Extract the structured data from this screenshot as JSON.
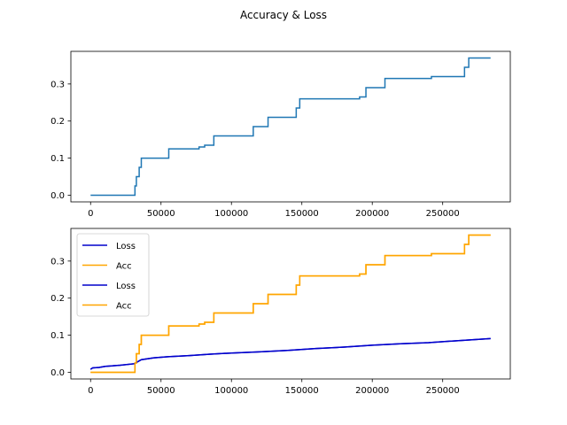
{
  "figure": {
    "title": "Accuracy & Loss"
  },
  "chart_data": [
    {
      "type": "line",
      "title": "",
      "xlabel": "",
      "ylabel": "",
      "xlim": [
        -14000,
        298000
      ],
      "ylim": [
        -0.018,
        0.388
      ],
      "xticks": [
        0,
        50000,
        100000,
        150000,
        200000,
        250000
      ],
      "xtick_labels": [
        "0",
        "50000",
        "100000",
        "150000",
        "200000",
        "250000"
      ],
      "yticks": [
        0.0,
        0.1,
        0.2,
        0.3
      ],
      "ytick_labels": [
        "0.0",
        "0.1",
        "0.2",
        "0.3"
      ],
      "grid": false,
      "legend": null,
      "series": [
        {
          "color": "#1f77b4",
          "step": true,
          "points": [
            [
              0,
              0.0
            ],
            [
              31500,
              0.0
            ],
            [
              31500,
              0.025
            ],
            [
              32500,
              0.025
            ],
            [
              32500,
              0.05
            ],
            [
              34500,
              0.05
            ],
            [
              34500,
              0.075
            ],
            [
              36000,
              0.075
            ],
            [
              36000,
              0.1
            ],
            [
              55500,
              0.1
            ],
            [
              55500,
              0.125
            ],
            [
              77000,
              0.125
            ],
            [
              77000,
              0.13
            ],
            [
              81000,
              0.13
            ],
            [
              81000,
              0.135
            ],
            [
              87500,
              0.135
            ],
            [
              87500,
              0.16
            ],
            [
              115500,
              0.16
            ],
            [
              115500,
              0.185
            ],
            [
              126000,
              0.185
            ],
            [
              126000,
              0.21
            ],
            [
              146000,
              0.21
            ],
            [
              146000,
              0.235
            ],
            [
              148500,
              0.235
            ],
            [
              148500,
              0.26
            ],
            [
              191000,
              0.26
            ],
            [
              191000,
              0.265
            ],
            [
              195500,
              0.265
            ],
            [
              195500,
              0.29
            ],
            [
              209000,
              0.29
            ],
            [
              209000,
              0.315
            ],
            [
              242000,
              0.315
            ],
            [
              242000,
              0.32
            ],
            [
              265500,
              0.32
            ],
            [
              265500,
              0.345
            ],
            [
              268500,
              0.345
            ],
            [
              268500,
              0.37
            ],
            [
              284000,
              0.37
            ]
          ]
        }
      ]
    },
    {
      "type": "line",
      "title": "",
      "xlabel": "",
      "ylabel": "",
      "xlim": [
        -14000,
        298000
      ],
      "ylim": [
        -0.018,
        0.388
      ],
      "xticks": [
        0,
        50000,
        100000,
        150000,
        200000,
        250000
      ],
      "xtick_labels": [
        "0",
        "50000",
        "100000",
        "150000",
        "200000",
        "250000"
      ],
      "yticks": [
        0.0,
        0.1,
        0.2,
        0.3
      ],
      "ytick_labels": [
        "0.0",
        "0.1",
        "0.2",
        "0.3"
      ],
      "grid": false,
      "legend": "top-left",
      "series": [
        {
          "name": "Loss",
          "color": "#0000cc",
          "step": false,
          "points": [
            [
              0,
              0.008
            ],
            [
              1500,
              0.012
            ],
            [
              6000,
              0.013
            ],
            [
              10500,
              0.016
            ],
            [
              21000,
              0.019
            ],
            [
              31000,
              0.023
            ],
            [
              36000,
              0.034
            ],
            [
              45000,
              0.039
            ],
            [
              55000,
              0.042
            ],
            [
              70000,
              0.045
            ],
            [
              85000,
              0.049
            ],
            [
              100000,
              0.052
            ],
            [
              120000,
              0.055
            ],
            [
              140000,
              0.059
            ],
            [
              160000,
              0.064
            ],
            [
              180000,
              0.068
            ],
            [
              200000,
              0.073
            ],
            [
              220000,
              0.077
            ],
            [
              240000,
              0.08
            ],
            [
              260000,
              0.085
            ],
            [
              284000,
              0.091
            ]
          ]
        },
        {
          "name": "Acc",
          "color": "#ffa500",
          "step": true,
          "points": [
            [
              0,
              0.0
            ],
            [
              31500,
              0.0
            ],
            [
              31500,
              0.025
            ],
            [
              32500,
              0.025
            ],
            [
              32500,
              0.05
            ],
            [
              34500,
              0.05
            ],
            [
              34500,
              0.075
            ],
            [
              36000,
              0.075
            ],
            [
              36000,
              0.1
            ],
            [
              55500,
              0.1
            ],
            [
              55500,
              0.125
            ],
            [
              77000,
              0.125
            ],
            [
              77000,
              0.13
            ],
            [
              81000,
              0.13
            ],
            [
              81000,
              0.135
            ],
            [
              87500,
              0.135
            ],
            [
              87500,
              0.16
            ],
            [
              115500,
              0.16
            ],
            [
              115500,
              0.185
            ],
            [
              126000,
              0.185
            ],
            [
              126000,
              0.21
            ],
            [
              146000,
              0.21
            ],
            [
              146000,
              0.235
            ],
            [
              148500,
              0.235
            ],
            [
              148500,
              0.26
            ],
            [
              191000,
              0.26
            ],
            [
              191000,
              0.265
            ],
            [
              195500,
              0.265
            ],
            [
              195500,
              0.29
            ],
            [
              209000,
              0.29
            ],
            [
              209000,
              0.315
            ],
            [
              242000,
              0.315
            ],
            [
              242000,
              0.32
            ],
            [
              265500,
              0.32
            ],
            [
              265500,
              0.345
            ],
            [
              268500,
              0.345
            ],
            [
              268500,
              0.37
            ],
            [
              284000,
              0.37
            ]
          ]
        },
        {
          "name": "Loss",
          "color": "#0000cc",
          "step": false,
          "points": [
            [
              0,
              0.008
            ],
            [
              1500,
              0.012
            ],
            [
              6000,
              0.013
            ],
            [
              10500,
              0.016
            ],
            [
              21000,
              0.019
            ],
            [
              31000,
              0.023
            ],
            [
              36000,
              0.034
            ],
            [
              45000,
              0.039
            ],
            [
              55000,
              0.042
            ],
            [
              70000,
              0.045
            ],
            [
              85000,
              0.049
            ],
            [
              100000,
              0.052
            ],
            [
              120000,
              0.055
            ],
            [
              140000,
              0.059
            ],
            [
              160000,
              0.064
            ],
            [
              180000,
              0.068
            ],
            [
              200000,
              0.073
            ],
            [
              220000,
              0.077
            ],
            [
              240000,
              0.08
            ],
            [
              260000,
              0.085
            ],
            [
              284000,
              0.091
            ]
          ]
        },
        {
          "name": "Acc",
          "color": "#ffa500",
          "step": true,
          "points": [
            [
              0,
              0.0
            ],
            [
              31500,
              0.0
            ],
            [
              31500,
              0.025
            ],
            [
              32500,
              0.025
            ],
            [
              32500,
              0.05
            ],
            [
              34500,
              0.05
            ],
            [
              34500,
              0.075
            ],
            [
              36000,
              0.075
            ],
            [
              36000,
              0.1
            ],
            [
              55500,
              0.1
            ],
            [
              55500,
              0.125
            ],
            [
              77000,
              0.125
            ],
            [
              77000,
              0.13
            ],
            [
              81000,
              0.13
            ],
            [
              81000,
              0.135
            ],
            [
              87500,
              0.135
            ],
            [
              87500,
              0.16
            ],
            [
              115500,
              0.16
            ],
            [
              115500,
              0.185
            ],
            [
              126000,
              0.185
            ],
            [
              126000,
              0.21
            ],
            [
              146000,
              0.21
            ],
            [
              146000,
              0.235
            ],
            [
              148500,
              0.235
            ],
            [
              148500,
              0.26
            ],
            [
              191000,
              0.26
            ],
            [
              191000,
              0.265
            ],
            [
              195500,
              0.265
            ],
            [
              195500,
              0.29
            ],
            [
              209000,
              0.29
            ],
            [
              209000,
              0.315
            ],
            [
              242000,
              0.315
            ],
            [
              242000,
              0.32
            ],
            [
              265500,
              0.32
            ],
            [
              265500,
              0.345
            ],
            [
              268500,
              0.345
            ],
            [
              268500,
              0.37
            ],
            [
              284000,
              0.37
            ]
          ]
        }
      ]
    }
  ]
}
